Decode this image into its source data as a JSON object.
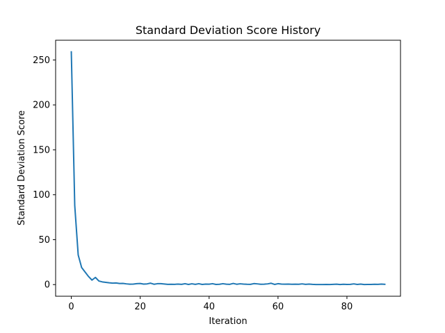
{
  "chart_data": {
    "type": "line",
    "title": "Standard Deviation Score History",
    "xlabel": "Iteration",
    "ylabel": "Standard Deviation Score",
    "xlim": [
      -4.55,
      95.55
    ],
    "ylim": [
      -12.95,
      271.95
    ],
    "xticks": [
      0,
      20,
      40,
      60,
      80
    ],
    "yticks": [
      0,
      50,
      100,
      150,
      200,
      250
    ],
    "grid": false,
    "legend": "none",
    "line_color": "#1f77b4",
    "series": [
      {
        "x": [
          0,
          1,
          2,
          3,
          4,
          5,
          6,
          7,
          8,
          9,
          10,
          11,
          12,
          13,
          14,
          15,
          16,
          17,
          18,
          19,
          20,
          21,
          22,
          23,
          24,
          25,
          26,
          27,
          28,
          29,
          30,
          31,
          32,
          33,
          34,
          35,
          36,
          37,
          38,
          39,
          40,
          41,
          42,
          43,
          44,
          45,
          46,
          47,
          48,
          49,
          50,
          51,
          52,
          53,
          54,
          55,
          56,
          57,
          58,
          59,
          60,
          61,
          62,
          63,
          64,
          65,
          66,
          67,
          68,
          69,
          70,
          71,
          72,
          73,
          74,
          75,
          76,
          77,
          78,
          79,
          80,
          81,
          82,
          83,
          84,
          85,
          86,
          87,
          88,
          89,
          90,
          91
        ],
        "y": [
          259,
          88,
          33,
          19,
          14,
          9,
          5,
          8,
          4,
          3,
          2.5,
          2,
          1.6,
          1.8,
          1.2,
          1.3,
          0.8,
          0.5,
          0.6,
          1,
          1.2,
          0.6,
          0.8,
          1.6,
          0.4,
          1,
          1,
          0.7,
          0.3,
          0.4,
          0.3,
          0.6,
          0.3,
          1,
          0.2,
          0.9,
          0.3,
          1,
          0.2,
          0.6,
          0.5,
          1,
          0.2,
          0.4,
          1,
          0.5,
          0.3,
          1.3,
          0.4,
          0.9,
          0.6,
          0.4,
          0.3,
          1.1,
          0.8,
          0.4,
          0.5,
          0.8,
          1.5,
          0.2,
          1,
          0.6,
          0.5,
          0.6,
          0.4,
          0.5,
          0.4,
          0.8,
          0.3,
          0.6,
          0.3,
          0.1,
          0.1,
          0.1,
          0.2,
          0.1,
          0.3,
          0.5,
          0.1,
          0.4,
          0.2,
          0.3,
          0.8,
          0.2,
          0.6,
          0.1,
          0.2,
          0.2,
          0.4,
          0.3,
          0.6,
          0.3
        ]
      }
    ]
  }
}
